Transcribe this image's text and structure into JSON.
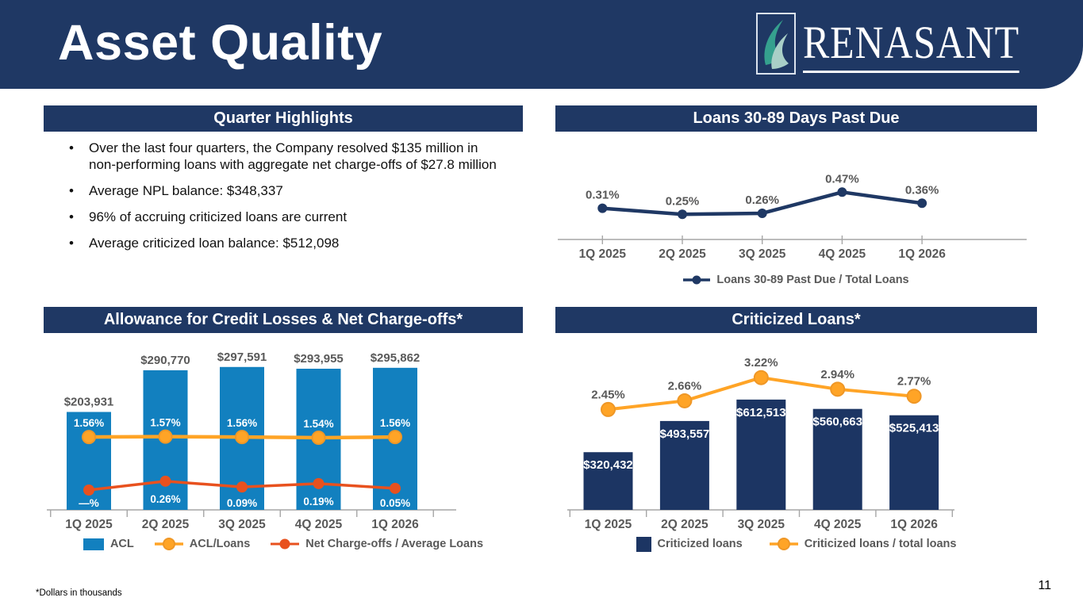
{
  "slide": {
    "title": "Asset Quality",
    "footnote": "*Dollars in thousands",
    "page_number": "11"
  },
  "logo": {
    "text": "RENASANT"
  },
  "colors": {
    "navy": "#1F3864",
    "bar_navy": "#1C3563",
    "blue": "#1280BF",
    "yellow": "#FFA426",
    "yellow_stroke": "#EF9726",
    "red": "#E8511E",
    "gray_text": "#595959",
    "axis": "#A6A6A6",
    "white": "#FFFFFF"
  },
  "panels": {
    "highlights": {
      "title": "Quarter Highlights",
      "bullets": [
        "Over the last four quarters, the Company resolved $135 million in non-performing loans with aggregate net charge-offs of $27.8 million",
        "Average NPL balance: $348,337",
        "96% of accruing criticized loans are current",
        "Average criticized loan balance: $512,098"
      ]
    }
  },
  "chart_data": [
    {
      "id": "past_due",
      "type": "line",
      "title": "Loans 30-89 Days Past Due",
      "categories": [
        "1Q 2025",
        "2Q 2025",
        "3Q 2025",
        "4Q 2025",
        "1Q 2026"
      ],
      "series": [
        {
          "name": "Loans 30-89 Past Due / Total Loans",
          "type": "line",
          "values": [
            0.31,
            0.25,
            0.26,
            0.47,
            0.36
          ],
          "labels": [
            "0.31%",
            "0.25%",
            "0.26%",
            "0.47%",
            "0.36%"
          ],
          "color_key": "navy"
        }
      ],
      "line_ylim": [
        0,
        1.0
      ],
      "grid": false,
      "legend_position": "bottom"
    },
    {
      "id": "acl",
      "type": "bar+line",
      "title": "Allowance for Credit Losses & Net Charge-offs*",
      "categories": [
        "1Q 2025",
        "2Q 2025",
        "3Q 2025",
        "4Q 2025",
        "1Q 2026"
      ],
      "series": [
        {
          "name": "ACL",
          "type": "bar",
          "values": [
            203931,
            290770,
            297591,
            293955,
            295862
          ],
          "labels": [
            "$203,931",
            "$290,770",
            "$297,591",
            "$293,955",
            "$295,862"
          ],
          "color_key": "blue"
        },
        {
          "name": "ACL/Loans",
          "type": "line",
          "values": [
            1.56,
            1.57,
            1.56,
            1.54,
            1.56
          ],
          "labels": [
            "1.56%",
            "1.57%",
            "1.56%",
            "1.54%",
            "1.56%"
          ],
          "color_key": "yellow"
        },
        {
          "name": "Net Charge-offs / Average Loans",
          "type": "line",
          "values": [
            0,
            0.26,
            0.09,
            0.19,
            0.05
          ],
          "labels": [
            "—%",
            "0.26%",
            "0.09%",
            "0.19%",
            "0.05%"
          ],
          "color_key": "red"
        }
      ],
      "bar_ylim": [
        0,
        360000
      ],
      "line_ylim": [
        0,
        4.5
      ],
      "grid": false,
      "legend_position": "bottom",
      "units": "Dollars in thousands"
    },
    {
      "id": "criticized",
      "type": "bar+line",
      "title": "Criticized Loans*",
      "categories": [
        "1Q 2025",
        "2Q 2025",
        "3Q 2025",
        "4Q 2025",
        "1Q 2026"
      ],
      "series": [
        {
          "name": "Criticized loans",
          "type": "bar",
          "values": [
            320432,
            493557,
            612513,
            560663,
            525413
          ],
          "labels": [
            "$320,432",
            "$493,557",
            "$612,513",
            "$560,663",
            "$525,413"
          ],
          "color_key": "bar_navy"
        },
        {
          "name": "Criticized loans / total loans",
          "type": "line",
          "values": [
            2.45,
            2.66,
            3.22,
            2.94,
            2.77
          ],
          "labels": [
            "2.45%",
            "2.66%",
            "3.22%",
            "2.94%",
            "2.77%"
          ],
          "color_key": "yellow"
        }
      ],
      "bar_ylim": [
        0,
        960000
      ],
      "line_ylim": [
        0,
        4.2
      ],
      "grid": false,
      "legend_position": "bottom",
      "units": "Dollars in thousands"
    }
  ]
}
